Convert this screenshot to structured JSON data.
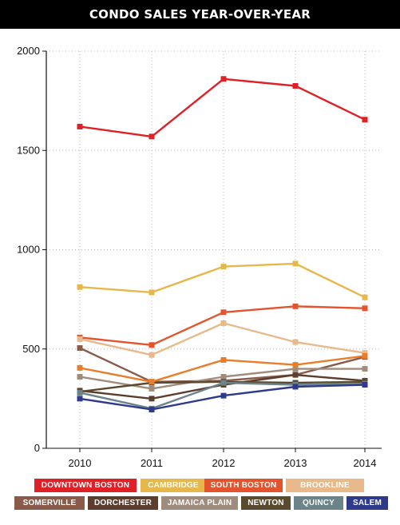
{
  "title": "CONDO SALES YEAR-OVER-YEAR",
  "chart_data": {
    "type": "line",
    "x": [
      "2010",
      "2011",
      "2012",
      "2013",
      "2014"
    ],
    "ylim": [
      0,
      2000
    ],
    "yticks": [
      "0",
      "500",
      "1000",
      "1500",
      "2000"
    ],
    "grid": true,
    "legend_position": "bottom",
    "series": [
      {
        "name": "DOWNTOWN BOSTON",
        "color": "#e02027",
        "values": [
          1620,
          1570,
          1860,
          1825,
          1655
        ]
      },
      {
        "name": "CAMBRIDGE",
        "color": "#e6b84b",
        "values": [
          812,
          785,
          915,
          930,
          760
        ]
      },
      {
        "name": "SOUTH BOSTON",
        "color": "#e3542e",
        "values": [
          558,
          520,
          685,
          715,
          705
        ]
      },
      {
        "name": "BROOKLINE",
        "color": "#e8b98a",
        "values": [
          550,
          470,
          630,
          535,
          480
        ]
      },
      {
        "name": "SOMERVILLE",
        "color": "#8a5a4a",
        "values": [
          505,
          335,
          340,
          370,
          460
        ]
      },
      {
        "name": "DORCHESTER",
        "color": "#5c3d2e",
        "values": [
          290,
          250,
          320,
          370,
          340
        ]
      },
      {
        "name": "JAMAICA PLAIN",
        "color": "#a08c7c",
        "values": [
          360,
          300,
          360,
          400,
          400
        ]
      },
      {
        "name": "NEWTON",
        "color": "#5a4a30",
        "values": [
          285,
          330,
          335,
          330,
          335
        ]
      },
      {
        "name": "QUINCY",
        "color": "#6a8489",
        "values": [
          280,
          200,
          330,
          320,
          325
        ]
      },
      {
        "name": "SALEM",
        "color": "#2e3a8c",
        "values": [
          250,
          195,
          265,
          310,
          320
        ]
      },
      {
        "name": "",
        "color": "#e87d2a",
        "values": [
          405,
          335,
          445,
          420,
          465
        ]
      }
    ]
  },
  "legend": [
    {
      "label": "DOWNTOWN BOSTON",
      "color": "#e02027"
    },
    {
      "label": "CAMBRIDGE",
      "color": "#e6b84b"
    },
    {
      "label": "SOUTH BOSTON",
      "color": "#e3542e"
    },
    {
      "label": "BROOKLINE",
      "color": "#e8b98a"
    },
    {
      "label": "SOMERVILLE",
      "color": "#8a5a4a"
    },
    {
      "label": "DORCHESTER",
      "color": "#5c3d2e"
    },
    {
      "label": "JAMAICA PLAIN",
      "color": "#a08c7c"
    },
    {
      "label": "NEWTON",
      "color": "#5a4a30"
    },
    {
      "label": "QUINCY",
      "color": "#6a8489"
    },
    {
      "label": "SALEM",
      "color": "#2e3a8c"
    }
  ]
}
